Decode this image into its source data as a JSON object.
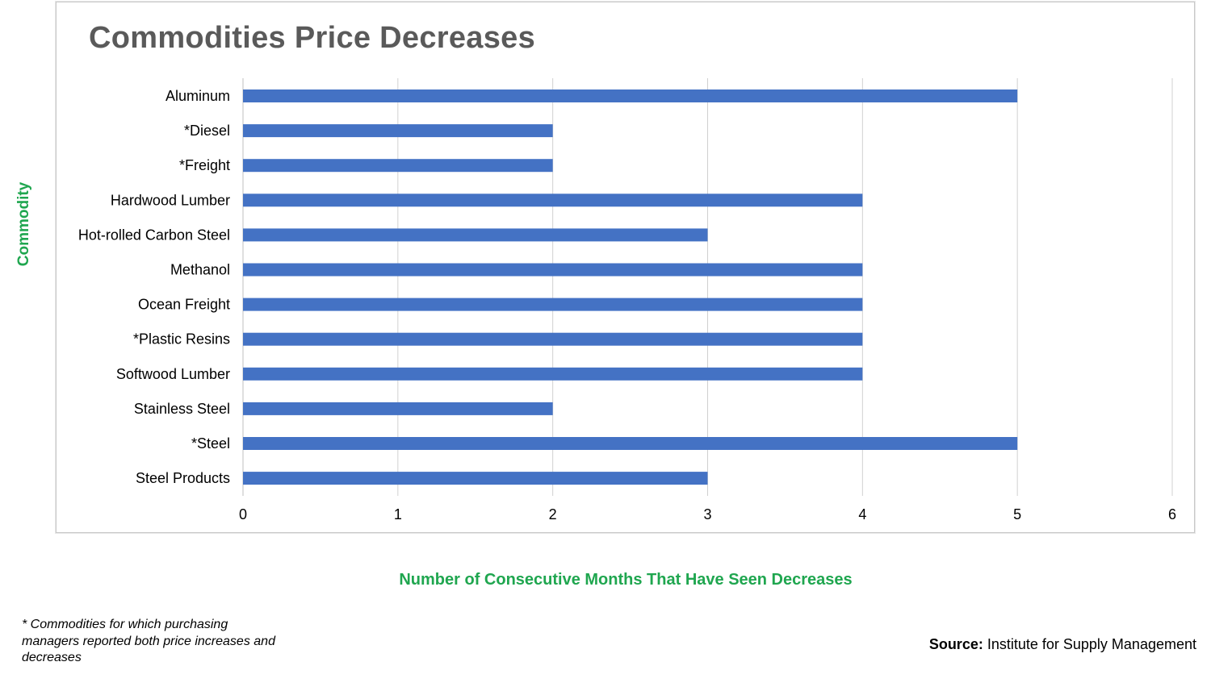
{
  "chart_data": {
    "type": "bar",
    "orientation": "horizontal",
    "title": "Commodities Price Decreases",
    "xlabel": "Number of Consecutive Months That Have Seen Decreases",
    "ylabel": "Commodity",
    "categories": [
      "Aluminum",
      "*Diesel",
      "*Freight",
      "Hardwood Lumber",
      "Hot-rolled Carbon Steel",
      "Methanol",
      "Ocean Freight",
      "*Plastic Resins",
      "Softwood Lumber",
      "Stainless Steel",
      "*Steel",
      "Steel Products"
    ],
    "values": [
      5,
      2,
      2,
      4,
      3,
      4,
      4,
      4,
      4,
      2,
      5,
      3
    ],
    "xlim": [
      0,
      6
    ],
    "xticks": [
      "0",
      "1",
      "2",
      "3",
      "4",
      "5",
      "6"
    ],
    "grid": "vertical",
    "bar_color": "#4472c4",
    "axis_title_color": "#1fa64f"
  },
  "footnote": "* Commodities for which purchasing managers reported both price increases and decreases",
  "source": {
    "label": "Source:",
    "text": " Institute for Supply Management"
  }
}
